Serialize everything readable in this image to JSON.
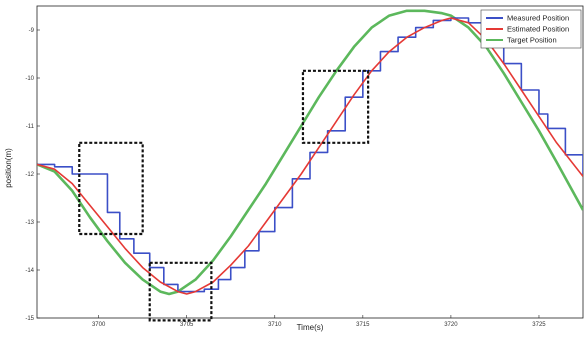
{
  "chart_data": {
    "type": "line",
    "xlabel": "Time(s)",
    "ylabel": "position(m)",
    "xlim": [
      3696.5,
      3727.5
    ],
    "ylim": [
      -15,
      -8.5
    ],
    "x_ticks": [
      3700,
      3705,
      3710,
      3715,
      3720,
      3725
    ],
    "y_ticks": [
      -9,
      -10,
      -11,
      -12,
      -13,
      -14,
      -15
    ],
    "legend_position": "top-right",
    "colors": {
      "measured": "#3b4fc7",
      "estimated": "#e53935",
      "target": "#5cb85c",
      "box": "#111111"
    },
    "series": [
      {
        "name": "Measured Position",
        "style": "step",
        "x": [
          3696.5,
          3697.5,
          3698.5,
          3700.5,
          3701.2,
          3702.0,
          3702.9,
          3703.7,
          3704.5,
          3705.3,
          3706.0,
          3706.8,
          3707.5,
          3708.3,
          3709.1,
          3710.0,
          3711.0,
          3712.0,
          3713.0,
          3714.0,
          3715.0,
          3716.0,
          3717.0,
          3718.0,
          3719.0,
          3720.0,
          3721.0,
          3722.0,
          3723.0,
          3724.0,
          3725.0,
          3725.5,
          3726.5,
          3727.5
        ],
        "y": [
          -11.8,
          -11.85,
          -12.0,
          -12.8,
          -13.35,
          -13.65,
          -13.95,
          -14.3,
          -14.45,
          -14.45,
          -14.4,
          -14.2,
          -13.95,
          -13.6,
          -13.2,
          -12.7,
          -12.1,
          -11.55,
          -11.1,
          -10.4,
          -9.85,
          -9.45,
          -9.15,
          -8.95,
          -8.8,
          -8.75,
          -8.85,
          -9.2,
          -9.7,
          -10.25,
          -10.75,
          -11.05,
          -11.6,
          -12.0
        ]
      },
      {
        "name": "Estimated Position",
        "x": [
          3696.5,
          3697.5,
          3698.5,
          3699.5,
          3700.5,
          3701.5,
          3702.5,
          3703.5,
          3704.5,
          3705.0,
          3705.5,
          3706.5,
          3707.5,
          3708.5,
          3709.5,
          3710.5,
          3711.5,
          3712.5,
          3713.5,
          3714.5,
          3715.5,
          3716.5,
          3717.5,
          3718.5,
          3719.5,
          3720.0,
          3721.0,
          3722.0,
          3723.0,
          3724.0,
          3725.0,
          3726.0,
          3727.5
        ],
        "y": [
          -11.8,
          -11.9,
          -12.2,
          -12.65,
          -13.1,
          -13.55,
          -13.95,
          -14.25,
          -14.45,
          -14.5,
          -14.45,
          -14.25,
          -13.9,
          -13.5,
          -13.0,
          -12.5,
          -12.0,
          -11.45,
          -10.9,
          -10.35,
          -9.85,
          -9.45,
          -9.15,
          -8.95,
          -8.8,
          -8.75,
          -8.85,
          -9.2,
          -9.7,
          -10.25,
          -10.8,
          -11.35,
          -12.05
        ]
      },
      {
        "name": "Target Position",
        "x": [
          3696.5,
          3697.5,
          3698.5,
          3699.5,
          3700.5,
          3701.5,
          3702.5,
          3703.5,
          3704.0,
          3704.5,
          3705.5,
          3706.5,
          3707.5,
          3708.5,
          3709.5,
          3710.5,
          3711.5,
          3712.5,
          3713.5,
          3714.5,
          3715.5,
          3716.5,
          3717.5,
          3718.5,
          3719.5,
          3720.0,
          3721.0,
          3722.0,
          3723.0,
          3724.0,
          3725.0,
          3726.0,
          3727.5
        ],
        "y": [
          -11.8,
          -11.95,
          -12.35,
          -12.9,
          -13.4,
          -13.85,
          -14.2,
          -14.45,
          -14.5,
          -14.45,
          -14.2,
          -13.8,
          -13.3,
          -12.75,
          -12.2,
          -11.6,
          -11.0,
          -10.4,
          -9.85,
          -9.35,
          -8.95,
          -8.7,
          -8.6,
          -8.6,
          -8.65,
          -8.7,
          -8.95,
          -9.35,
          -9.9,
          -10.5,
          -11.1,
          -11.75,
          -12.75
        ]
      }
    ],
    "highlight_boxes": [
      {
        "x": [
          3698.9,
          3702.5
        ],
        "y": [
          -11.35,
          -13.25
        ]
      },
      {
        "x": [
          3702.9,
          3706.4
        ],
        "y": [
          -13.85,
          -15.05
        ]
      },
      {
        "x": [
          3711.6,
          3715.3
        ],
        "y": [
          -9.85,
          -11.35
        ]
      }
    ]
  }
}
